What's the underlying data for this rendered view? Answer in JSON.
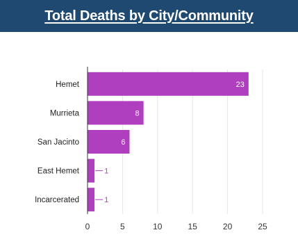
{
  "header": {
    "title": "Total Deaths by City/Community"
  },
  "colors": {
    "header_bg": "#1f4970",
    "bar": "#b03fc0",
    "grid": "#e6e6e6",
    "axis": "#333333"
  },
  "chart_data": {
    "type": "bar",
    "orientation": "horizontal",
    "title": "Total Deaths by City/Community",
    "xlabel": "",
    "ylabel": "",
    "categories": [
      "Hemet",
      "Murrieta",
      "San Jacinto",
      "East Hemet",
      "Incarcerated"
    ],
    "values": [
      23,
      8,
      6,
      1,
      1
    ],
    "data_labels": [
      "23",
      "8",
      "6",
      "1",
      "1"
    ],
    "xlim": [
      0,
      25
    ],
    "xticks": [
      "0",
      "5",
      "10",
      "15",
      "20",
      "25"
    ],
    "grid": true,
    "legend": "none"
  }
}
